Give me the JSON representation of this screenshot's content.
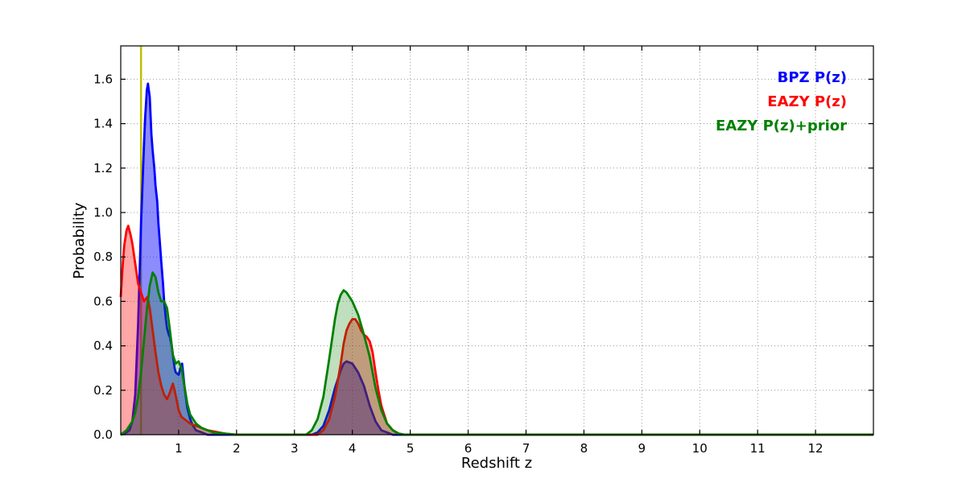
{
  "chart_data": {
    "type": "line",
    "title": "",
    "xlabel": "Redshift z",
    "ylabel": "Probability",
    "xlim": [
      0,
      13
    ],
    "ylim": [
      0,
      1.75
    ],
    "xticks": [
      1,
      2,
      3,
      4,
      5,
      6,
      7,
      8,
      9,
      10,
      11,
      12
    ],
    "yticks": [
      0.0,
      0.2,
      0.4,
      0.6,
      0.8,
      1.0,
      1.2,
      1.4,
      1.6
    ],
    "grid": true,
    "legend_position": "upper right",
    "frame_color": "#000000",
    "grid_color": "#999999",
    "vline": {
      "x": 0.35,
      "color": "#bfbf00",
      "width": 2.5,
      "name": "yellow-redshift-marker"
    },
    "series": [
      {
        "name": "BPZ P(z)",
        "color": "#0000ff",
        "fill_opacity": 0.45,
        "points": [
          [
            0,
            0
          ],
          [
            0.1,
            0.01
          ],
          [
            0.15,
            0.02
          ],
          [
            0.2,
            0.06
          ],
          [
            0.25,
            0.18
          ],
          [
            0.3,
            0.5
          ],
          [
            0.35,
            0.95
          ],
          [
            0.4,
            1.3
          ],
          [
            0.42,
            1.42
          ],
          [
            0.45,
            1.55
          ],
          [
            0.47,
            1.58
          ],
          [
            0.5,
            1.52
          ],
          [
            0.53,
            1.35
          ],
          [
            0.55,
            1.28
          ],
          [
            0.58,
            1.2
          ],
          [
            0.6,
            1.12
          ],
          [
            0.63,
            1.05
          ],
          [
            0.65,
            0.95
          ],
          [
            0.68,
            0.85
          ],
          [
            0.7,
            0.78
          ],
          [
            0.73,
            0.68
          ],
          [
            0.75,
            0.6
          ],
          [
            0.78,
            0.52
          ],
          [
            0.8,
            0.48
          ],
          [
            0.83,
            0.45
          ],
          [
            0.85,
            0.44
          ],
          [
            0.88,
            0.4
          ],
          [
            0.9,
            0.36
          ],
          [
            0.93,
            0.3
          ],
          [
            0.95,
            0.28
          ],
          [
            1.0,
            0.27
          ],
          [
            1.03,
            0.3
          ],
          [
            1.06,
            0.32
          ],
          [
            1.1,
            0.22
          ],
          [
            1.15,
            0.12
          ],
          [
            1.2,
            0.07
          ],
          [
            1.25,
            0.04
          ],
          [
            1.3,
            0.02
          ],
          [
            1.4,
            0.01
          ],
          [
            1.5,
            0
          ],
          [
            2,
            0
          ],
          [
            2.5,
            0
          ],
          [
            3,
            0
          ],
          [
            3.3,
            0
          ],
          [
            3.4,
            0.01
          ],
          [
            3.5,
            0.04
          ],
          [
            3.6,
            0.11
          ],
          [
            3.7,
            0.21
          ],
          [
            3.8,
            0.29
          ],
          [
            3.85,
            0.32
          ],
          [
            3.9,
            0.33
          ],
          [
            4.0,
            0.32
          ],
          [
            4.1,
            0.28
          ],
          [
            4.2,
            0.22
          ],
          [
            4.3,
            0.13
          ],
          [
            4.4,
            0.06
          ],
          [
            4.5,
            0.02
          ],
          [
            4.6,
            0.01
          ],
          [
            4.7,
            0
          ],
          [
            5,
            0
          ],
          [
            6,
            0
          ],
          [
            7,
            0
          ],
          [
            8,
            0
          ],
          [
            9,
            0
          ],
          [
            10,
            0
          ],
          [
            11,
            0
          ],
          [
            12,
            0
          ],
          [
            13,
            0
          ]
        ]
      },
      {
        "name": "EAZY P(z)",
        "color": "#ff0000",
        "fill_opacity": 0.35,
        "points": [
          [
            0,
            0.62
          ],
          [
            0.03,
            0.75
          ],
          [
            0.06,
            0.85
          ],
          [
            0.1,
            0.92
          ],
          [
            0.13,
            0.94
          ],
          [
            0.17,
            0.9
          ],
          [
            0.2,
            0.86
          ],
          [
            0.25,
            0.77
          ],
          [
            0.3,
            0.68
          ],
          [
            0.35,
            0.64
          ],
          [
            0.4,
            0.6
          ],
          [
            0.43,
            0.61
          ],
          [
            0.46,
            0.62
          ],
          [
            0.5,
            0.57
          ],
          [
            0.55,
            0.47
          ],
          [
            0.6,
            0.37
          ],
          [
            0.65,
            0.28
          ],
          [
            0.7,
            0.22
          ],
          [
            0.75,
            0.18
          ],
          [
            0.8,
            0.16
          ],
          [
            0.85,
            0.19
          ],
          [
            0.9,
            0.23
          ],
          [
            0.93,
            0.2
          ],
          [
            0.97,
            0.15
          ],
          [
            1.0,
            0.11
          ],
          [
            1.05,
            0.08
          ],
          [
            1.1,
            0.07
          ],
          [
            1.2,
            0.05
          ],
          [
            1.3,
            0.04
          ],
          [
            1.4,
            0.03
          ],
          [
            1.5,
            0.02
          ],
          [
            1.6,
            0.015
          ],
          [
            1.8,
            0.005
          ],
          [
            2,
            0
          ],
          [
            2.5,
            0
          ],
          [
            3,
            0
          ],
          [
            3.4,
            0
          ],
          [
            3.5,
            0.02
          ],
          [
            3.6,
            0.07
          ],
          [
            3.7,
            0.17
          ],
          [
            3.8,
            0.32
          ],
          [
            3.85,
            0.41
          ],
          [
            3.9,
            0.47
          ],
          [
            3.95,
            0.5
          ],
          [
            4.0,
            0.52
          ],
          [
            4.05,
            0.52
          ],
          [
            4.1,
            0.5
          ],
          [
            4.15,
            0.47
          ],
          [
            4.2,
            0.45
          ],
          [
            4.25,
            0.44
          ],
          [
            4.3,
            0.42
          ],
          [
            4.35,
            0.37
          ],
          [
            4.4,
            0.28
          ],
          [
            4.45,
            0.2
          ],
          [
            4.5,
            0.13
          ],
          [
            4.6,
            0.05
          ],
          [
            4.7,
            0.02
          ],
          [
            4.8,
            0.005
          ],
          [
            4.9,
            0
          ],
          [
            5,
            0
          ],
          [
            6,
            0
          ],
          [
            7,
            0
          ],
          [
            8,
            0
          ],
          [
            9,
            0
          ],
          [
            10,
            0
          ],
          [
            11,
            0
          ],
          [
            12,
            0
          ],
          [
            13,
            0
          ]
        ]
      },
      {
        "name": "EAZY P(z)+prior",
        "color": "#008000",
        "fill_opacity": 0.25,
        "points": [
          [
            0,
            0
          ],
          [
            0.1,
            0.02
          ],
          [
            0.2,
            0.06
          ],
          [
            0.25,
            0.1
          ],
          [
            0.3,
            0.17
          ],
          [
            0.35,
            0.28
          ],
          [
            0.4,
            0.42
          ],
          [
            0.45,
            0.56
          ],
          [
            0.5,
            0.67
          ],
          [
            0.55,
            0.73
          ],
          [
            0.6,
            0.71
          ],
          [
            0.65,
            0.64
          ],
          [
            0.7,
            0.6
          ],
          [
            0.75,
            0.6
          ],
          [
            0.8,
            0.57
          ],
          [
            0.85,
            0.47
          ],
          [
            0.9,
            0.36
          ],
          [
            0.95,
            0.32
          ],
          [
            1.0,
            0.33
          ],
          [
            1.05,
            0.3
          ],
          [
            1.1,
            0.22
          ],
          [
            1.15,
            0.14
          ],
          [
            1.2,
            0.09
          ],
          [
            1.3,
            0.05
          ],
          [
            1.4,
            0.03
          ],
          [
            1.5,
            0.02
          ],
          [
            1.6,
            0.01
          ],
          [
            1.8,
            0.005
          ],
          [
            2,
            0
          ],
          [
            2.5,
            0
          ],
          [
            3,
            0
          ],
          [
            3.2,
            0
          ],
          [
            3.3,
            0.02
          ],
          [
            3.4,
            0.07
          ],
          [
            3.5,
            0.17
          ],
          [
            3.6,
            0.34
          ],
          [
            3.7,
            0.52
          ],
          [
            3.75,
            0.59
          ],
          [
            3.8,
            0.63
          ],
          [
            3.85,
            0.65
          ],
          [
            3.9,
            0.64
          ],
          [
            4.0,
            0.6
          ],
          [
            4.1,
            0.54
          ],
          [
            4.2,
            0.45
          ],
          [
            4.3,
            0.35
          ],
          [
            4.4,
            0.21
          ],
          [
            4.5,
            0.11
          ],
          [
            4.6,
            0.05
          ],
          [
            4.7,
            0.02
          ],
          [
            4.8,
            0.005
          ],
          [
            4.9,
            0
          ],
          [
            5,
            0
          ],
          [
            6,
            0
          ],
          [
            7,
            0
          ],
          [
            8,
            0
          ],
          [
            9,
            0
          ],
          [
            10,
            0
          ],
          [
            11,
            0
          ],
          [
            12,
            0
          ],
          [
            13,
            0
          ]
        ]
      }
    ]
  }
}
